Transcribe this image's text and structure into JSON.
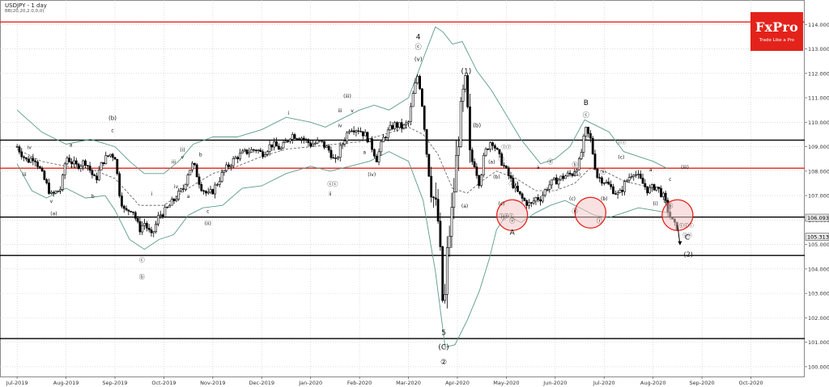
{
  "header": {
    "symbol_title": "USDJPY - 1 day",
    "indicator_label": "BB(20,20,2.0,0,0)"
  },
  "logo": {
    "name": "FxPro",
    "tagline": "Trade Like a Pro",
    "color": "#e3231b"
  },
  "colors": {
    "candle": "#000000",
    "bollinger": "#5a9a8a",
    "ma": "#555555",
    "black_levels": "#000000",
    "red_levels": "#e3231b",
    "circle_fill": "#f6c9c9",
    "circle_stroke": "#e3231b",
    "price_box": "#e9e9e9"
  },
  "chart_data": {
    "type": "candlestick",
    "title": "USDJPY - 1 day",
    "indicator": "BB(20,20,2.0,0,0)",
    "ylim": [
      99.6,
      115.0
    ],
    "y_ticks": [
      100.0,
      101.0,
      102.0,
      103.0,
      104.0,
      105.0,
      106.0,
      107.0,
      108.0,
      109.0,
      110.0,
      111.0,
      112.0,
      113.0,
      114.0
    ],
    "y_tick_labels": [
      "100.000",
      "101.000",
      "102.000",
      "103.000",
      "104.000",
      "105.000",
      "106.000",
      "107.000",
      "108.000",
      "109.000",
      "110.000",
      "111.000",
      "112.000",
      "113.000",
      "114.000"
    ],
    "x_tick_labels": [
      "Jul-2019",
      "Aug-2019",
      "Sep-2019",
      "Oct-2019",
      "Nov-2019",
      "Dec-2019",
      "Jan-2020",
      "Feb-2020",
      "Mar-2020",
      "Apr-2020",
      "May-2020",
      "Jun-2020",
      "Jul-2020",
      "Aug-2020",
      "Sep-2020",
      "Oct-2020"
    ],
    "x_range_months": [
      -0.35,
      16.1
    ],
    "current_price": "106.093",
    "second_price": "105.313",
    "current_price_value": 106.093,
    "second_price_value": 105.313,
    "horizontal_levels": [
      {
        "value": 114.1,
        "color": "red"
      },
      {
        "value": 109.27,
        "color": "black"
      },
      {
        "value": 108.12,
        "color": "red"
      },
      {
        "value": 106.12,
        "color": "black"
      },
      {
        "value": 104.55,
        "color": "black"
      },
      {
        "value": 101.15,
        "color": "black"
      }
    ],
    "price_path": [
      [
        0.0,
        109.0
      ],
      [
        0.2,
        108.4
      ],
      [
        0.35,
        108.6
      ],
      [
        0.5,
        107.9
      ],
      [
        0.7,
        107.0
      ],
      [
        0.9,
        107.3
      ],
      [
        1.0,
        108.6
      ],
      [
        1.2,
        108.2
      ],
      [
        1.4,
        108.4
      ],
      [
        1.6,
        107.6
      ],
      [
        1.75,
        108.4
      ],
      [
        1.9,
        108.7
      ],
      [
        2.0,
        108.6
      ],
      [
        2.1,
        107.0
      ],
      [
        2.2,
        106.3
      ],
      [
        2.35,
        106.5
      ],
      [
        2.5,
        105.6
      ],
      [
        2.6,
        105.9
      ],
      [
        2.75,
        105.3
      ],
      [
        2.9,
        106.2
      ],
      [
        3.0,
        106.3
      ],
      [
        3.2,
        106.8
      ],
      [
        3.4,
        107.3
      ],
      [
        3.5,
        108.0
      ],
      [
        3.6,
        108.3
      ],
      [
        3.75,
        107.4
      ],
      [
        3.9,
        107.0
      ],
      [
        4.0,
        107.2
      ],
      [
        4.2,
        107.9
      ],
      [
        4.35,
        108.3
      ],
      [
        4.5,
        108.6
      ],
      [
        4.7,
        108.8
      ],
      [
        4.9,
        108.9
      ],
      [
        5.0,
        108.7
      ],
      [
        5.2,
        109.1
      ],
      [
        5.4,
        108.9
      ],
      [
        5.6,
        109.5
      ],
      [
        5.8,
        109.4
      ],
      [
        6.0,
        109.1
      ],
      [
        6.2,
        109.2
      ],
      [
        6.4,
        108.8
      ],
      [
        6.5,
        108.3
      ],
      [
        6.6,
        108.9
      ],
      [
        6.8,
        109.8
      ],
      [
        7.0,
        109.7
      ],
      [
        7.15,
        109.4
      ],
      [
        7.25,
        109.0
      ],
      [
        7.35,
        108.5
      ],
      [
        7.5,
        109.4
      ],
      [
        7.7,
        109.9
      ],
      [
        7.9,
        109.8
      ],
      [
        8.0,
        110.0
      ],
      [
        8.1,
        111.2
      ],
      [
        8.2,
        112.0
      ],
      [
        8.3,
        110.4
      ],
      [
        8.4,
        108.1
      ],
      [
        8.5,
        107.0
      ],
      [
        8.6,
        106.1
      ],
      [
        8.65,
        104.5
      ],
      [
        8.72,
        101.9
      ],
      [
        8.8,
        104.9
      ],
      [
        8.9,
        106.5
      ],
      [
        9.0,
        109.0
      ],
      [
        9.1,
        110.9
      ],
      [
        9.18,
        111.6
      ],
      [
        9.25,
        108.5
      ],
      [
        9.35,
        108.3
      ],
      [
        9.45,
        107.5
      ],
      [
        9.55,
        108.7
      ],
      [
        9.7,
        109.3
      ],
      [
        9.85,
        108.6
      ],
      [
        10.0,
        108.0
      ],
      [
        10.2,
        107.2
      ],
      [
        10.35,
        106.8
      ],
      [
        10.5,
        106.6
      ],
      [
        10.6,
        106.9
      ],
      [
        10.7,
        106.9
      ],
      [
        10.85,
        107.4
      ],
      [
        11.0,
        107.6
      ],
      [
        11.2,
        107.8
      ],
      [
        11.35,
        107.9
      ],
      [
        11.5,
        108.4
      ],
      [
        11.62,
        109.7
      ],
      [
        11.72,
        109.3
      ],
      [
        11.85,
        107.8
      ],
      [
        12.0,
        107.6
      ],
      [
        12.15,
        107.3
      ],
      [
        12.3,
        107.0
      ],
      [
        12.45,
        107.6
      ],
      [
        12.6,
        108.0
      ],
      [
        12.75,
        107.6
      ],
      [
        12.9,
        107.2
      ],
      [
        13.05,
        107.4
      ],
      [
        13.2,
        107.0
      ],
      [
        13.32,
        106.3
      ],
      [
        13.42,
        105.8
      ],
      [
        13.5,
        105.7
      ]
    ],
    "bollinger_upper": [
      [
        0.0,
        110.5
      ],
      [
        0.5,
        109.6
      ],
      [
        1.0,
        109.1
      ],
      [
        1.5,
        109.3
      ],
      [
        2.0,
        109.0
      ],
      [
        2.3,
        108.4
      ],
      [
        2.6,
        107.9
      ],
      [
        3.0,
        107.9
      ],
      [
        3.3,
        108.4
      ],
      [
        3.6,
        109.1
      ],
      [
        4.0,
        109.4
      ],
      [
        4.5,
        109.4
      ],
      [
        5.0,
        109.7
      ],
      [
        5.5,
        110.2
      ],
      [
        6.0,
        110.0
      ],
      [
        6.3,
        109.8
      ],
      [
        6.7,
        110.2
      ],
      [
        7.0,
        110.5
      ],
      [
        7.3,
        110.7
      ],
      [
        7.6,
        110.5
      ],
      [
        8.0,
        111.0
      ],
      [
        8.3,
        112.6
      ],
      [
        8.55,
        113.9
      ],
      [
        8.7,
        113.7
      ],
      [
        8.9,
        113.2
      ],
      [
        9.1,
        113.3
      ],
      [
        9.4,
        112.1
      ],
      [
        9.7,
        111.3
      ],
      [
        10.0,
        110.3
      ],
      [
        10.3,
        109.3
      ],
      [
        10.7,
        108.3
      ],
      [
        11.0,
        108.5
      ],
      [
        11.3,
        109.0
      ],
      [
        11.6,
        110.1
      ],
      [
        11.8,
        109.9
      ],
      [
        12.1,
        109.6
      ],
      [
        12.4,
        108.8
      ],
      [
        12.7,
        108.6
      ],
      [
        13.0,
        108.4
      ],
      [
        13.3,
        108.1
      ]
    ],
    "bollinger_lower": [
      [
        0.0,
        108.3
      ],
      [
        0.3,
        107.2
      ],
      [
        0.6,
        106.9
      ],
      [
        1.0,
        107.3
      ],
      [
        1.4,
        106.9
      ],
      [
        1.8,
        107.0
      ],
      [
        2.0,
        106.4
      ],
      [
        2.3,
        105.2
      ],
      [
        2.6,
        104.8
      ],
      [
        2.9,
        105.2
      ],
      [
        3.2,
        105.4
      ],
      [
        3.5,
        106.2
      ],
      [
        3.8,
        106.5
      ],
      [
        4.2,
        106.6
      ],
      [
        4.6,
        107.3
      ],
      [
        5.0,
        107.4
      ],
      [
        5.5,
        107.9
      ],
      [
        6.0,
        108.2
      ],
      [
        6.4,
        108.0
      ],
      [
        6.8,
        108.2
      ],
      [
        7.2,
        108.4
      ],
      [
        7.6,
        108.8
      ],
      [
        8.0,
        108.4
      ],
      [
        8.3,
        106.8
      ],
      [
        8.55,
        103.9
      ],
      [
        8.75,
        100.8
      ],
      [
        8.95,
        100.9
      ],
      [
        9.2,
        101.9
      ],
      [
        9.45,
        103.1
      ],
      [
        9.65,
        104.4
      ],
      [
        9.8,
        105.6
      ],
      [
        10.0,
        106.2
      ],
      [
        10.3,
        105.9
      ],
      [
        10.6,
        106.3
      ],
      [
        10.9,
        106.6
      ],
      [
        11.2,
        106.8
      ],
      [
        11.5,
        106.5
      ],
      [
        11.8,
        106.2
      ],
      [
        12.1,
        106.1
      ],
      [
        12.4,
        106.3
      ],
      [
        12.7,
        106.5
      ],
      [
        13.0,
        106.4
      ],
      [
        13.3,
        106.3
      ]
    ],
    "moving_average": [
      [
        0.0,
        108.9
      ],
      [
        0.5,
        108.4
      ],
      [
        1.0,
        108.2
      ],
      [
        1.5,
        108.1
      ],
      [
        2.0,
        107.7
      ],
      [
        2.5,
        106.6
      ],
      [
        3.0,
        106.6
      ],
      [
        3.5,
        107.3
      ],
      [
        4.0,
        107.9
      ],
      [
        4.5,
        108.2
      ],
      [
        5.0,
        108.6
      ],
      [
        5.5,
        108.9
      ],
      [
        6.0,
        109.0
      ],
      [
        6.5,
        109.1
      ],
      [
        7.0,
        109.2
      ],
      [
        7.5,
        109.5
      ],
      [
        8.0,
        109.8
      ],
      [
        8.3,
        109.5
      ],
      [
        8.6,
        108.7
      ],
      [
        8.9,
        107.3
      ],
      [
        9.2,
        107.1
      ],
      [
        9.5,
        107.6
      ],
      [
        9.8,
        108.0
      ],
      [
        10.2,
        107.7
      ],
      [
        10.6,
        107.2
      ],
      [
        11.0,
        107.2
      ],
      [
        11.4,
        107.5
      ],
      [
        11.7,
        108.1
      ],
      [
        12.0,
        108.0
      ],
      [
        12.4,
        107.6
      ],
      [
        12.8,
        107.4
      ],
      [
        13.2,
        107.3
      ]
    ],
    "highlight_circles": [
      {
        "x": 10.12,
        "y": 106.2
      },
      {
        "x": 11.72,
        "y": 106.3
      },
      {
        "x": 13.5,
        "y": 106.2
      }
    ],
    "projection_arrow": {
      "from": [
        13.5,
        105.8
      ],
      "to": [
        13.55,
        105.0
      ]
    },
    "annotations": [
      {
        "text": "4",
        "x": 8.2,
        "y": 113.4,
        "size": 9
      },
      {
        "text": "(v)",
        "x": 8.2,
        "y": 112.5,
        "size": 7
      },
      {
        "text": "ⓒ",
        "x": 8.2,
        "y": 113.0,
        "size": 8
      },
      {
        "text": "(1)",
        "x": 9.18,
        "y": 112.0,
        "size": 9
      },
      {
        "text": "5",
        "x": 8.72,
        "y": 101.3,
        "size": 9
      },
      {
        "text": "(C)",
        "x": 8.72,
        "y": 100.7,
        "size": 9
      },
      {
        "text": "②",
        "x": 8.72,
        "y": 100.1,
        "size": 9
      },
      {
        "text": "B",
        "x": 11.63,
        "y": 110.7,
        "size": 9
      },
      {
        "text": "ⓒ",
        "x": 11.63,
        "y": 110.2,
        "size": 8
      },
      {
        "text": "A",
        "x": 10.12,
        "y": 105.4,
        "size": 9
      },
      {
        "text": "ⓥ",
        "x": 10.12,
        "y": 105.9,
        "size": 7
      },
      {
        "text": "C",
        "x": 13.7,
        "y": 105.2,
        "size": 9
      },
      {
        "text": "(2)",
        "x": 13.72,
        "y": 104.5,
        "size": 8
      },
      {
        "text": "ⓘⓘⓘ",
        "x": 13.68,
        "y": 105.7,
        "size": 6
      },
      {
        "text": "ⓘⓥ",
        "x": 13.7,
        "y": 105.3,
        "size": 6
      },
      {
        "text": "(b)",
        "x": 1.95,
        "y": 110.1,
        "size": 7
      },
      {
        "text": "c",
        "x": 1.95,
        "y": 109.6,
        "size": 6
      },
      {
        "text": "ⓒ",
        "x": 2.55,
        "y": 104.3,
        "size": 7
      },
      {
        "text": "ⓑ",
        "x": 2.55,
        "y": 103.6,
        "size": 7
      },
      {
        "text": "iv",
        "x": 0.25,
        "y": 108.9,
        "size": 6
      },
      {
        "text": "iii",
        "x": 0.15,
        "y": 107.8,
        "size": 6
      },
      {
        "text": "v",
        "x": 0.7,
        "y": 106.7,
        "size": 6
      },
      {
        "text": "(a)",
        "x": 0.75,
        "y": 106.2,
        "size": 6
      },
      {
        "text": "a",
        "x": 1.1,
        "y": 109.0,
        "size": 6
      },
      {
        "text": "b",
        "x": 1.55,
        "y": 106.9,
        "size": 6
      },
      {
        "text": "(i)",
        "x": 3.38,
        "y": 108.8,
        "size": 6
      },
      {
        "text": "iii",
        "x": 3.2,
        "y": 108.3,
        "size": 6
      },
      {
        "text": "v",
        "x": 3.38,
        "y": 108.5,
        "size": 6
      },
      {
        "text": "iv",
        "x": 3.25,
        "y": 107.3,
        "size": 6
      },
      {
        "text": "a",
        "x": 3.5,
        "y": 106.9,
        "size": 6
      },
      {
        "text": "b",
        "x": 3.75,
        "y": 108.6,
        "size": 6
      },
      {
        "text": "c",
        "x": 3.9,
        "y": 106.3,
        "size": 6
      },
      {
        "text": "(ii)",
        "x": 3.9,
        "y": 105.8,
        "size": 6
      },
      {
        "text": "i",
        "x": 2.75,
        "y": 107.0,
        "size": 6
      },
      {
        "text": "ii",
        "x": 2.85,
        "y": 105.8,
        "size": 6
      },
      {
        "text": "(iii)",
        "x": 6.75,
        "y": 111.0,
        "size": 6
      },
      {
        "text": "iii",
        "x": 6.6,
        "y": 110.4,
        "size": 6
      },
      {
        "text": "v",
        "x": 6.85,
        "y": 110.4,
        "size": 6
      },
      {
        "text": "iv",
        "x": 6.6,
        "y": 109.8,
        "size": 6
      },
      {
        "text": "a",
        "x": 7.1,
        "y": 108.7,
        "size": 6
      },
      {
        "text": "(iv)",
        "x": 7.25,
        "y": 107.8,
        "size": 6
      },
      {
        "text": "i",
        "x": 5.55,
        "y": 110.3,
        "size": 6
      },
      {
        "text": "ⓒ",
        "x": 6.4,
        "y": 107.4,
        "size": 7
      },
      {
        "text": "ii",
        "x": 6.4,
        "y": 107.0,
        "size": 6
      },
      {
        "text": "(b)",
        "x": 9.4,
        "y": 109.8,
        "size": 7
      },
      {
        "text": "(a)",
        "x": 9.15,
        "y": 106.5,
        "size": 6
      },
      {
        "text": "ⓐ",
        "x": 9.9,
        "y": 108.4,
        "size": 7
      },
      {
        "text": "(a)",
        "x": 9.7,
        "y": 108.3,
        "size": 6
      },
      {
        "text": "(b)",
        "x": 9.8,
        "y": 107.7,
        "size": 6
      },
      {
        "text": "ⓘⓘ",
        "x": 10.0,
        "y": 108.9,
        "size": 6
      },
      {
        "text": "(c)",
        "x": 9.9,
        "y": 106.6,
        "size": 6
      },
      {
        "text": "ⓘ",
        "x": 9.95,
        "y": 106.0,
        "size": 6
      },
      {
        "text": "ⓘⓥ",
        "x": 10.15,
        "y": 107.4,
        "size": 6
      },
      {
        "text": "ⓘⓘⓘ",
        "x": 10.0,
        "y": 106.1,
        "size": 6
      },
      {
        "text": "ⓐ",
        "x": 10.9,
        "y": 108.3,
        "size": 7
      },
      {
        "text": "ⓑ",
        "x": 11.4,
        "y": 108.2,
        "size": 7
      },
      {
        "text": "(a)",
        "x": 11.45,
        "y": 107.8,
        "size": 6
      },
      {
        "text": "a",
        "x": 10.65,
        "y": 108.1,
        "size": 6
      },
      {
        "text": "b",
        "x": 11.05,
        "y": 107.6,
        "size": 6
      },
      {
        "text": "(c)",
        "x": 11.35,
        "y": 106.8,
        "size": 6
      },
      {
        "text": "ⓑ",
        "x": 11.4,
        "y": 106.3,
        "size": 7
      },
      {
        "text": "ⓘⓘ",
        "x": 12.35,
        "y": 109.1,
        "size": 6
      },
      {
        "text": "(c)",
        "x": 12.35,
        "y": 108.5,
        "size": 6
      },
      {
        "text": "ⓐ",
        "x": 11.98,
        "y": 107.9,
        "size": 7
      },
      {
        "text": "(b)",
        "x": 12.0,
        "y": 106.8,
        "size": 6
      },
      {
        "text": "ⓘ",
        "x": 11.9,
        "y": 105.9,
        "size": 7
      },
      {
        "text": "(iii)",
        "x": 13.65,
        "y": 108.1,
        "size": 6
      },
      {
        "text": "a",
        "x": 12.95,
        "y": 108.0,
        "size": 6
      },
      {
        "text": "c",
        "x": 13.35,
        "y": 107.6,
        "size": 6
      },
      {
        "text": "(i)",
        "x": 13.05,
        "y": 106.6,
        "size": 6
      },
      {
        "text": "b",
        "x": 13.25,
        "y": 106.7,
        "size": 6
      },
      {
        "text": "ⓑ",
        "x": 13.35,
        "y": 106.5,
        "size": 7
      },
      {
        "text": "ⓒ",
        "x": 6.5,
        "y": 107.4,
        "size": 7
      }
    ]
  }
}
